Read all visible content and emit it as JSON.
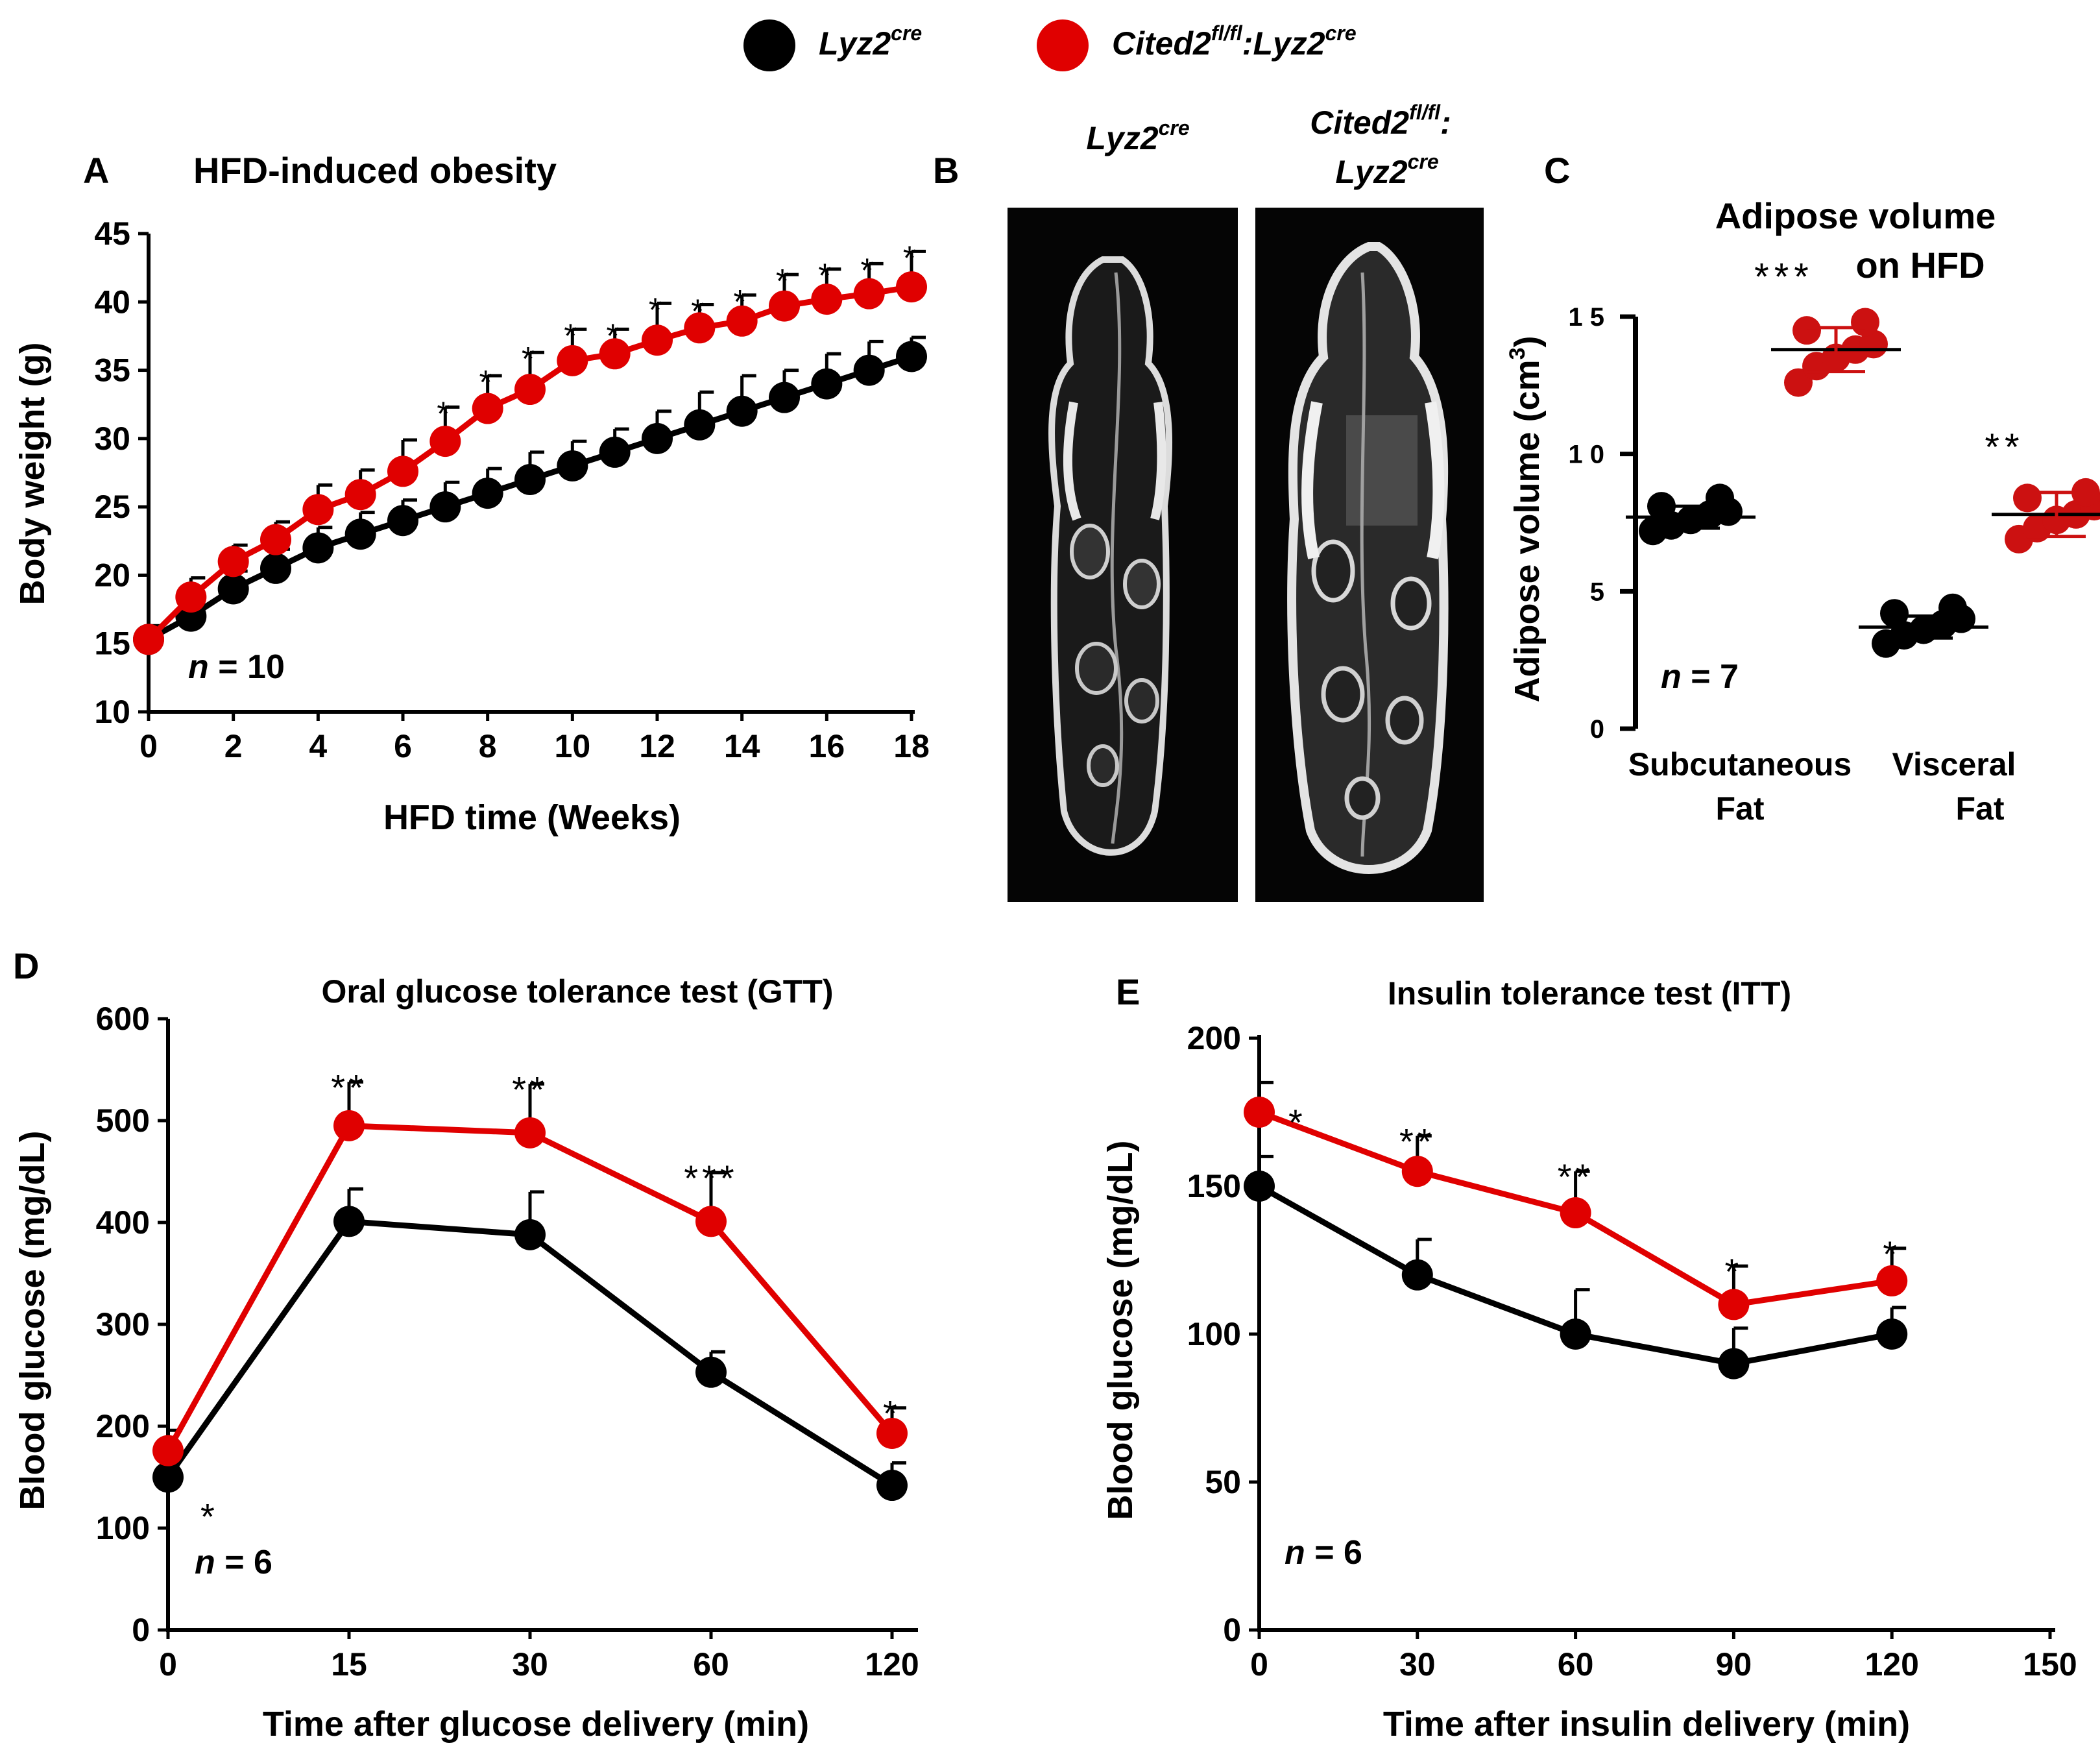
{
  "colors": {
    "black": "#000000",
    "red": "#e00000",
    "red_dark": "#cc1111"
  },
  "legend": {
    "items": [
      {
        "main": "Lyz2",
        "sup": "cre",
        "color": "#000000"
      },
      {
        "main": "Cited2",
        "sup": "fl/fl",
        "mid": ":Lyz2",
        "sup2": "cre",
        "color": "#e00000"
      }
    ]
  },
  "panel_b": {
    "letter": "B",
    "image_labels": [
      {
        "line1_main": "Lyz2",
        "line1_sup": "cre"
      },
      {
        "line1_main": "Cited2",
        "line1_sup": "fl/fl",
        "line1_tail": ":",
        "line2_main": "Lyz2",
        "line2_sup": "cre"
      }
    ]
  },
  "chart_data": [
    {
      "id": "A",
      "type": "line",
      "letter": "A",
      "title": "HFD-induced obesity",
      "xlabel": "HFD time (Weeks)",
      "ylabel": "Body weight (g)",
      "xlim": [
        0,
        18
      ],
      "ylim": [
        10,
        45
      ],
      "xticks": [
        0,
        2,
        4,
        6,
        8,
        10,
        12,
        14,
        16,
        18
      ],
      "yticks": [
        10,
        15,
        20,
        25,
        30,
        35,
        40,
        45
      ],
      "x": [
        0,
        1,
        2,
        3,
        4,
        5,
        6,
        7,
        8,
        9,
        10,
        11,
        12,
        13,
        14,
        15,
        16,
        17,
        18
      ],
      "series": [
        {
          "name": "Lyz2cre",
          "color": "#000000",
          "values": [
            15.3,
            17.0,
            19.0,
            20.5,
            22.0,
            23.0,
            24.0,
            25.0,
            26.0,
            27.0,
            28.0,
            29.0,
            30.0,
            31.0,
            32.0,
            33.0,
            34.0,
            35.0,
            36.0
          ],
          "errors": [
            1.0,
            1.2,
            1.3,
            1.4,
            1.5,
            1.6,
            1.5,
            1.8,
            1.8,
            2.0,
            1.8,
            1.7,
            2.0,
            2.4,
            2.6,
            2.0,
            2.2,
            2.1,
            1.4
          ]
        },
        {
          "name": "Cited2fl/fl:Lyz2cre",
          "color": "#e00000",
          "values": [
            15.3,
            18.4,
            21.0,
            22.6,
            24.8,
            25.9,
            27.6,
            29.8,
            32.2,
            33.6,
            35.7,
            36.2,
            37.2,
            38.1,
            38.6,
            39.7,
            40.2,
            40.6,
            41.1
          ],
          "errors": [
            1.0,
            1.4,
            1.2,
            1.3,
            1.8,
            1.8,
            2.3,
            2.5,
            2.4,
            2.7,
            2.3,
            1.8,
            2.7,
            1.7,
            1.9,
            2.3,
            2.2,
            2.2,
            2.6
          ]
        }
      ],
      "significance": [
        "",
        "",
        "",
        "",
        "",
        "",
        "",
        "*",
        "*",
        "*",
        "*",
        "*",
        "*",
        "*",
        "*",
        "*",
        "*",
        "*",
        "*"
      ],
      "n_label": "n",
      "n_value": "= 10"
    },
    {
      "id": "C",
      "type": "scatter",
      "letter": "C",
      "title_lines": [
        "Adipose volume",
        "on HFD"
      ],
      "ylabel": "Adipose volume (cm",
      "ylabel_sup": "3",
      "ylabel_end": ")",
      "ylim": [
        0,
        15
      ],
      "yticks": [
        0,
        5,
        10,
        15
      ],
      "ytick_labels": [
        "0",
        "5",
        "1 0",
        "1 5"
      ],
      "categories": [
        {
          "line1": "Subcutaneous",
          "line2": "Fat"
        },
        {
          "line1": "Visceral",
          "line2": "Fat"
        }
      ],
      "series": [
        {
          "name": "Lyz2cre",
          "color": "#000000",
          "groups": [
            {
              "points": [
                7.2,
                7.4,
                7.6,
                7.8,
                7.9,
                8.1,
                8.4
              ],
              "mean": 7.7,
              "sd": 0.4
            },
            {
              "points": [
                3.1,
                3.4,
                3.6,
                3.8,
                4.0,
                4.2,
                4.4
              ],
              "mean": 3.7,
              "sd": 0.4
            }
          ]
        },
        {
          "name": "Cited2fl/fl:Lyz2cre",
          "color": "#cc1111",
          "groups": [
            {
              "points": [
                12.6,
                13.2,
                13.5,
                13.8,
                14.0,
                14.5,
                14.8
              ],
              "mean": 13.8,
              "sd": 0.8
            },
            {
              "points": [
                6.9,
                7.3,
                7.6,
                7.8,
                8.1,
                8.4,
                8.6
              ],
              "mean": 7.8,
              "sd": 0.8
            }
          ]
        }
      ],
      "significance": [
        "***",
        "**"
      ],
      "n_label": "n",
      "n_value": "= 7"
    },
    {
      "id": "D",
      "type": "line",
      "letter": "D",
      "title": "Oral glucose tolerance test (GTT)",
      "xlabel": "Time after glucose delivery (min)",
      "ylabel": "Blood glucose (mg/dL)",
      "ylim": [
        0,
        600
      ],
      "yticks": [
        0,
        100,
        200,
        300,
        400,
        500,
        600
      ],
      "categories": [
        "0",
        "15",
        "30",
        "60",
        "120"
      ],
      "series": [
        {
          "name": "Lyz2cre",
          "color": "#000000",
          "values": [
            150,
            401,
            388,
            253,
            142
          ],
          "errors": [
            20,
            32,
            42,
            20,
            22
          ]
        },
        {
          "name": "Cited2fl/fl:Lyz2cre",
          "color": "#e00000",
          "values": [
            176,
            495,
            488,
            401,
            193
          ],
          "errors": [
            20,
            43,
            48,
            48,
            25
          ]
        }
      ],
      "significance": [
        "*",
        "**",
        "**",
        "***",
        "*"
      ],
      "n_label": "n",
      "n_value": "= 6"
    },
    {
      "id": "E",
      "type": "line",
      "letter": "E",
      "title": "Insulin tolerance test (ITT)",
      "xlabel": "Time after insulin delivery (min)",
      "ylabel": "Blood glucose (mg/dL)",
      "xlim": [
        0,
        150
      ],
      "ylim": [
        0,
        200
      ],
      "xticks": [
        0,
        30,
        60,
        90,
        120,
        150
      ],
      "yticks": [
        0,
        50,
        100,
        150,
        200
      ],
      "x": [
        0,
        30,
        60,
        90,
        120
      ],
      "series": [
        {
          "name": "Lyz2cre",
          "color": "#000000",
          "values": [
            150,
            120,
            100,
            90,
            100
          ],
          "errors": [
            10,
            12,
            15,
            12,
            9
          ]
        },
        {
          "name": "Cited2fl/fl:Lyz2cre",
          "color": "#e00000",
          "values": [
            175,
            155,
            141,
            110,
            118
          ],
          "errors": [
            10,
            12,
            14,
            13,
            11
          ]
        }
      ],
      "significance": [
        "*",
        "**",
        "**",
        "*",
        "*"
      ],
      "n_label": "n",
      "n_value": "= 6"
    }
  ]
}
